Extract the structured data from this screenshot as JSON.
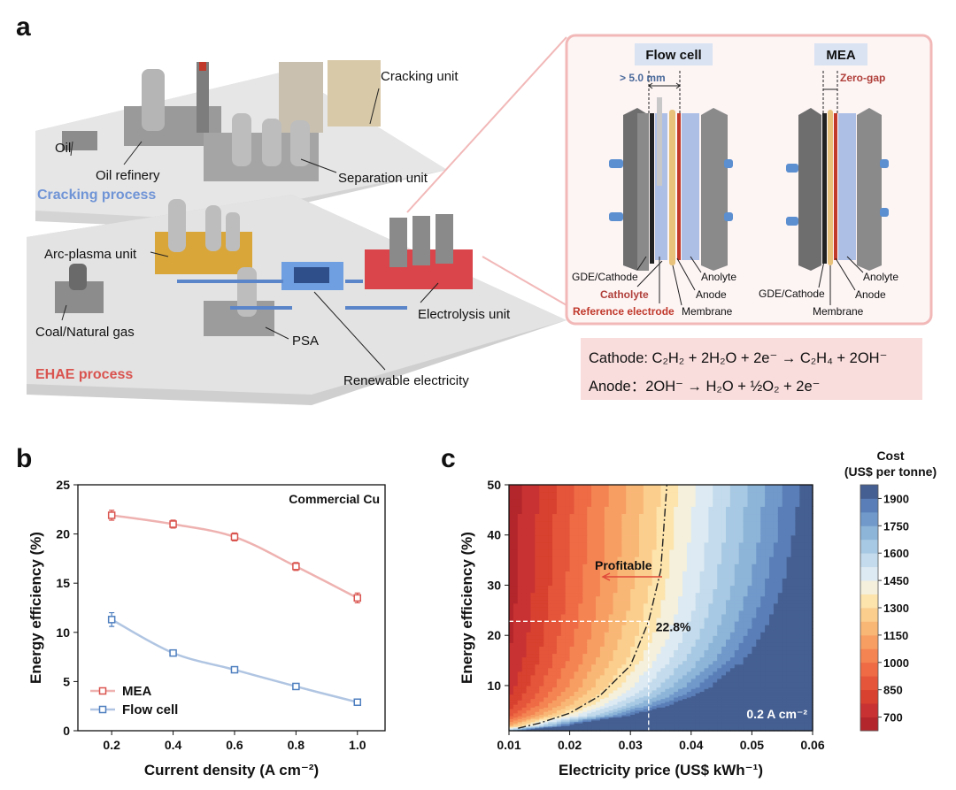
{
  "panel_labels": [
    "a",
    "b",
    "c"
  ],
  "diagram": {
    "cracking": {
      "title": "Cracking process",
      "units": [
        "Oil",
        "Oil refinery",
        "Cracking unit",
        "Separation unit"
      ]
    },
    "ehae": {
      "title": "EHAE process",
      "units": [
        "Coal/Natural gas",
        "Arc-plasma unit",
        "PSA",
        "Renewable electricity",
        "Electrolysis unit"
      ]
    },
    "cells": [
      {
        "title": "Flow cell",
        "gap": "> 5.0 mm",
        "labels": [
          "GDE/Cathode",
          "Catholyte",
          "Reference electrode",
          "Anolyte",
          "Anode",
          "Membrane"
        ]
      },
      {
        "title": "MEA",
        "gap": "Zero-gap",
        "labels": [
          "GDE/Cathode",
          "Anolyte",
          "Anode",
          "Membrane"
        ]
      }
    ],
    "equations": [
      "Cathode: C₂H₂ + 2H₂O + 2e⁻ → C₂H₄ + 2OH⁻",
      "Anode：2OH⁻ → H₂O + ½O₂ + 2e⁻"
    ]
  },
  "chart_data": [
    {
      "type": "line",
      "annotation": "Commercial Cu",
      "xlabel": "Current density (A cm⁻²)",
      "ylabel": "Energy efficiency (%)",
      "x": [
        0.2,
        0.4,
        0.6,
        0.8,
        1.0
      ],
      "series": [
        {
          "name": "MEA",
          "color": "#d9544f",
          "values": [
            21.9,
            21.0,
            19.7,
            16.7,
            13.5
          ],
          "errors": [
            0.5,
            0.4,
            0.4,
            0.4,
            0.5
          ]
        },
        {
          "name": "Flow cell",
          "color": "#4f7fbf",
          "values": [
            11.3,
            7.9,
            6.2,
            4.5,
            2.9
          ],
          "errors": [
            0.7,
            0.2,
            0.2,
            0.2,
            0.2
          ]
        }
      ],
      "xlim": [
        0.09,
        1.09
      ],
      "ylim": [
        0,
        25
      ],
      "xticks": [
        0.2,
        0.4,
        0.6,
        0.8,
        {
          "value": 1,
          "label": "1.0"
        }
      ],
      "yticks": [
        0,
        5,
        10,
        15,
        20,
        25
      ],
      "legend": "lower left"
    },
    {
      "type": "contour",
      "xlabel": "Electricity price (US$ kWh⁻¹)",
      "ylabel": "Energy efficiency (%)",
      "x": [
        0.01,
        0.015,
        0.02,
        0.025,
        0.03,
        0.035,
        0.04,
        0.045,
        0.05,
        0.055,
        0.06
      ],
      "y": [
        1,
        2,
        4,
        6,
        8,
        10,
        15,
        20,
        25,
        30,
        40,
        50
      ],
      "z": [
        [
          1712,
          2372,
          3033,
          3694,
          4355,
          5016,
          5677,
          6337,
          6998,
          7659,
          8320
        ],
        [
          1170,
          1560,
          1950,
          2340,
          2730,
          3120,
          3510,
          3900,
          4290,
          4680,
          5070
        ],
        [
          899,
          1154,
          1408,
          1663,
          1917,
          2172,
          2427,
          2681,
          2936,
          3190,
          3445
        ],
        [
          809,
          1018,
          1228,
          1437,
          1647,
          1856,
          2066,
          2275,
          2484,
          2694,
          2903
        ],
        [
          764,
          951,
          1138,
          1324,
          1511,
          1698,
          1885,
          2072,
          2259,
          2446,
          2633
        ],
        [
          737,
          910,
          1083,
          1257,
          1430,
          1603,
          1777,
          1950,
          2123,
          2297,
          2470
        ],
        [
          701,
          856,
          1011,
          1166,
          1322,
          1477,
          1632,
          1787,
          1943,
          2098,
          2253
        ],
        [
          683,
          829,
          975,
          1121,
          1268,
          1414,
          1560,
          1706,
          1853,
          1999,
          2145
        ],
        [
          672,
          812,
          953,
          1094,
          1235,
          1376,
          1517,
          1657,
          1798,
          1939,
          2080
        ],
        [
          664,
          802,
          939,
          1076,
          1213,
          1351,
          1488,
          1625,
          1762,
          1899,
          2036
        ],
        [
          655,
          788,
          921,
          1054,
          1186,
          1319,
          1452,
          1584,
          1717,
          1850,
          1982
        ],
        [
          650,
          780,
          910,
          1040,
          1170,
          1300,
          1430,
          1560,
          1690,
          1820,
          1950
        ]
      ],
      "xlim": [
        0.01,
        0.06
      ],
      "ylim": [
        1,
        50
      ],
      "xticks": [
        0.01,
        0.02,
        0.03,
        0.04,
        0.05,
        0.06
      ],
      "yticks": [
        10,
        20,
        30,
        40,
        50
      ],
      "colorbar": {
        "title": "Cost",
        "subtitle": "(US$ per tonne)",
        "clim": [
          625,
          1975
        ],
        "ticks": [
          700,
          850,
          1000,
          1150,
          1300,
          1450,
          1600,
          1750,
          1900
        ],
        "colors": [
          "#b3262b",
          "#c83232",
          "#d8412f",
          "#e4553a",
          "#ee6b45",
          "#f48452",
          "#f79e63",
          "#f9b776",
          "#fbce8e",
          "#fde3ac",
          "#f4f0dc",
          "#ddeaf3",
          "#c3dbec",
          "#a8c9e3",
          "#8db5d8",
          "#7199ca",
          "#5a7fb8",
          "#455f92"
        ]
      },
      "breakeven_curve": {
        "x": [
          0.0115,
          0.015,
          0.02,
          0.025,
          0.03,
          0.033,
          0.035,
          0.036
        ],
        "y": [
          1.5,
          2.5,
          4.5,
          8,
          14,
          22.8,
          33,
          50
        ]
      },
      "breakeven_point": {
        "x": 0.033,
        "y": 22.8,
        "label": "22.8%"
      },
      "annotations": {
        "profitable": "Profitable",
        "condition": "0.2 A cm⁻²"
      }
    }
  ]
}
